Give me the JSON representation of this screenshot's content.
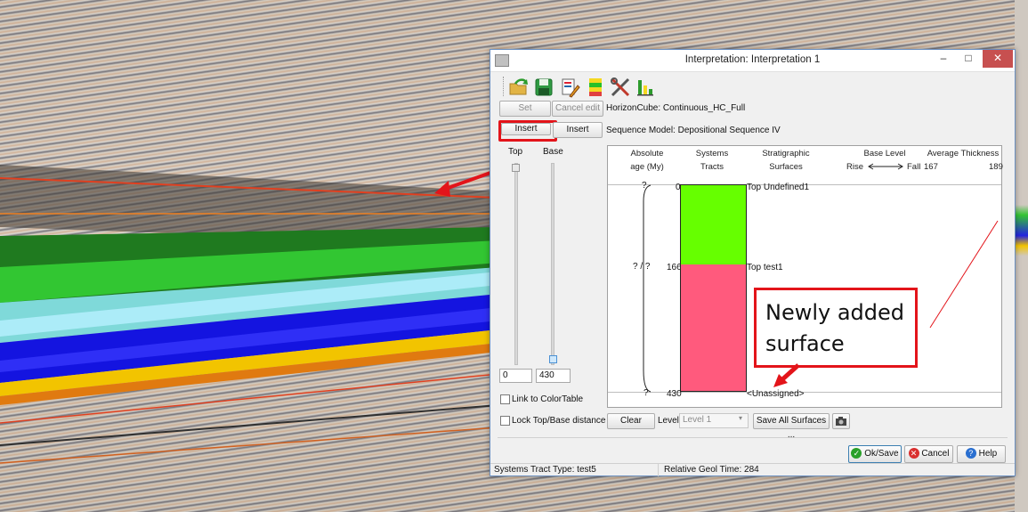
{
  "window": {
    "title": "Interpretation: Interpretation 1",
    "controls": [
      "–",
      "□",
      "✕"
    ]
  },
  "toolbar": {
    "icons": [
      "open-folder-icon",
      "save-icon",
      "edit-document-icon",
      "colortable-icon",
      "tools-icon",
      "bar-chart-icon"
    ]
  },
  "buttons": {
    "set": "Set",
    "cancel_edit": "Cancel edit",
    "insert_top": "Insert",
    "insert_base": "Insert",
    "clear": "Clear",
    "save_all": "Save All Surfaces ...",
    "ok": "Ok/Save",
    "cancel": "Cancel",
    "help": "Help"
  },
  "info": {
    "horizoncube": "HorizonCube: Continuous_HC_Full",
    "sequence_model": "Sequence Model: Depositional Sequence IV"
  },
  "sliders": {
    "top_label": "Top",
    "base_label": "Base",
    "top_value": "0",
    "base_value": "430"
  },
  "options": {
    "link_colortable": "Link to ColorTable",
    "lock_distance": "Lock Top/Base distance"
  },
  "level": {
    "label": "Level",
    "value": "Level 1"
  },
  "panel": {
    "headers": {
      "absolute_1": "Absolute",
      "absolute_2": "age (My)",
      "systems_1": "Systems",
      "systems_2": "Tracts",
      "strat_1": "Stratigraphic",
      "strat_2": "Surfaces",
      "base_level": "Base Level",
      "rise": "Rise",
      "fall": "Fall",
      "avg_thickness": "Average Thickness",
      "thick_min": "167",
      "thick_max": "189"
    },
    "ages": [
      "?",
      "? / ?",
      "?"
    ],
    "depths": [
      "0",
      "166",
      "430"
    ],
    "surfaces": [
      "Top Undefined1",
      "Top test1",
      "<Unassigned>"
    ],
    "tract_colors": [
      "#66ff00",
      "#ff5a7d"
    ]
  },
  "status": {
    "systems_tract": "Systems Tract Type: test5",
    "geol_time": "Relative Geol Time: 284"
  },
  "callout": {
    "line1": "Newly added",
    "line2": "surface"
  }
}
